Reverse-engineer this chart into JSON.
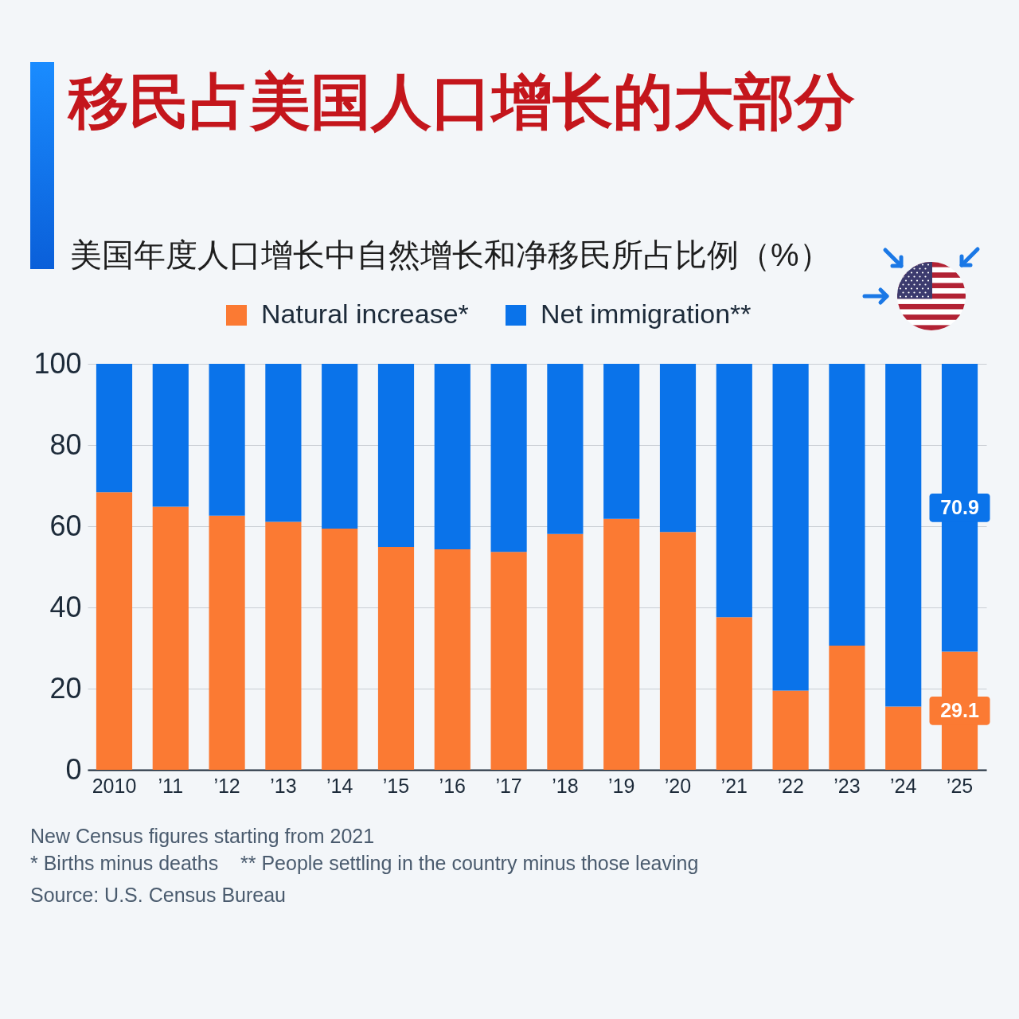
{
  "chart_data": {
    "type": "bar",
    "title": "移民占美国人口增长的大部分",
    "subtitle": "美国年度人口增长中自然增长和净移民所占比例（%）",
    "categories": [
      "2010",
      "’11",
      "’12",
      "’13",
      "’14",
      "’15",
      "’16",
      "’17",
      "’18",
      "’19",
      "’20",
      "’21",
      "’22",
      "’23",
      "’24",
      "’25"
    ],
    "series": [
      {
        "name": "Natural increase*",
        "color": "#fb7a33",
        "values": [
          68.4,
          64.8,
          62.6,
          61.1,
          59.4,
          54.9,
          54.3,
          53.7,
          58.1,
          61.8,
          58.6,
          37.6,
          19.5,
          30.6,
          15.6,
          29.1
        ],
        "value_labels": [
          null,
          null,
          null,
          null,
          null,
          null,
          null,
          null,
          null,
          null,
          null,
          null,
          null,
          null,
          null,
          "29.1"
        ]
      },
      {
        "name": "Net immigration**",
        "color": "#0a73ea",
        "values": [
          31.6,
          35.2,
          37.4,
          38.9,
          40.6,
          45.1,
          45.7,
          46.3,
          41.9,
          38.2,
          41.4,
          62.4,
          80.5,
          69.4,
          84.4,
          70.9
        ],
        "value_labels": [
          null,
          null,
          null,
          null,
          null,
          null,
          null,
          null,
          null,
          null,
          null,
          null,
          null,
          null,
          null,
          "70.9"
        ]
      }
    ],
    "stacked": true,
    "ylim": [
      0,
      100
    ],
    "yticks": [
      0,
      20,
      40,
      60,
      80,
      100
    ],
    "grid": "y",
    "legend": "top",
    "annotations": [
      "New Census figures starting from 2021",
      "* Births minus deaths    ** People settling in the country minus those leaving",
      "Source: U.S. Census Bureau"
    ]
  }
}
